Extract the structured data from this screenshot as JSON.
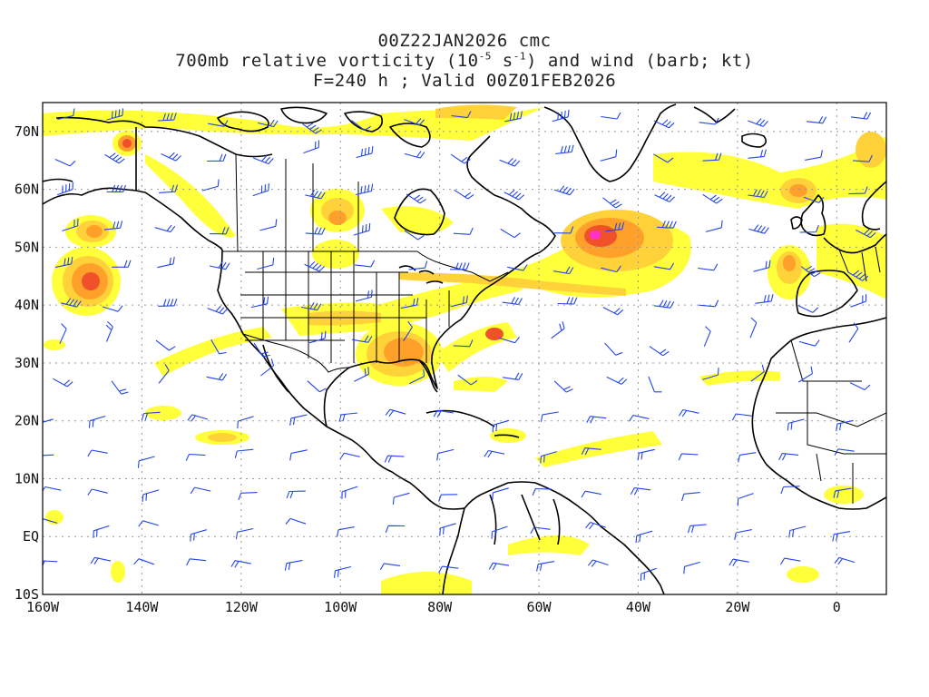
{
  "title": {
    "line1": "00Z22JAN2026 cmc",
    "line2_prefix": "700mb relative vorticity (10",
    "line2_exp1": "-5",
    "line2_mid": " s",
    "line2_exp2": "-1",
    "line2_suffix": ") and wind (barb; kt)",
    "line3": "F=240 h ; Valid 00Z01FEB2026"
  },
  "axes": {
    "lat_labels": [
      "70N",
      "60N",
      "50N",
      "40N",
      "30N",
      "20N",
      "10N",
      "EQ",
      "10S"
    ],
    "lat_values": [
      70,
      60,
      50,
      40,
      30,
      20,
      10,
      0,
      -10
    ],
    "lon_labels": [
      "160W",
      "140W",
      "120W",
      "100W",
      "80W",
      "60W",
      "40W",
      "20W",
      "0"
    ],
    "lon_values": [
      -160,
      -140,
      -120,
      -100,
      -80,
      -60,
      -40,
      -20,
      0
    ]
  },
  "domain": {
    "lon_range": [
      -160,
      10
    ],
    "lat_range": [
      -10,
      75
    ]
  },
  "colors": {
    "yellow": "#ffff3a",
    "gold": "#ffd23a",
    "orange": "#ffa02a",
    "red": "#f0502a",
    "magenta": "#ff33cc",
    "barb": "#2244ee",
    "coast": "#000000",
    "grid": "#999999"
  },
  "vorticity_maxima": [
    {
      "lon": -49,
      "lat": 52,
      "level": "max"
    },
    {
      "lon": -150,
      "lat": 45,
      "level": "high"
    },
    {
      "lon": -144,
      "lat": 68,
      "level": "high"
    },
    {
      "lon": -148,
      "lat": 53,
      "level": "high"
    },
    {
      "lon": -10,
      "lat": 47,
      "level": "high"
    },
    {
      "lon": -68,
      "lat": 35,
      "level": "high"
    },
    {
      "lon": -85,
      "lat": 31,
      "level": "med"
    },
    {
      "lon": -8,
      "lat": 59,
      "level": "med"
    }
  ]
}
